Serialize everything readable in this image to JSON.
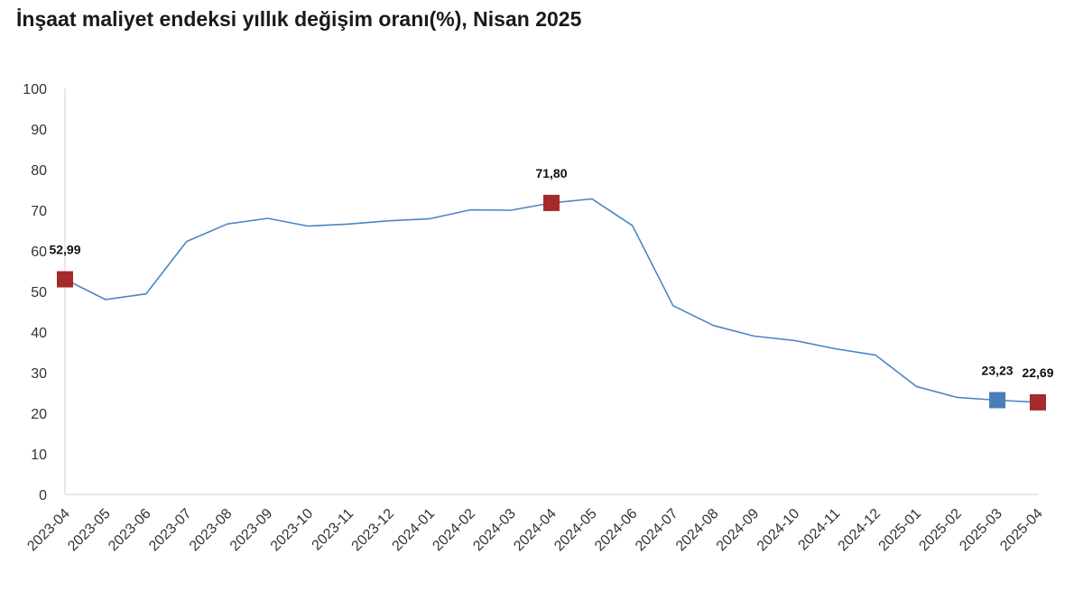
{
  "chart_data": {
    "type": "line",
    "title": "İnşaat maliyet endeksi yıllık değişim oranı(%), Nisan 2025",
    "xlabel": "",
    "ylabel": "",
    "ylim": [
      0,
      100
    ],
    "yticks": [
      "0",
      "10",
      "20",
      "30",
      "40",
      "50",
      "60",
      "70",
      "80",
      "90",
      "100"
    ],
    "categories": [
      "2023-04",
      "2023-05",
      "2023-06",
      "2023-07",
      "2023-08",
      "2023-09",
      "2023-10",
      "2023-11",
      "2023-12",
      "2024-01",
      "2024-02",
      "2024-03",
      "2024-04",
      "2024-05",
      "2024-06",
      "2024-07",
      "2024-08",
      "2024-09",
      "2024-10",
      "2024-11",
      "2024-12",
      "2025-01",
      "2025-02",
      "2025-03",
      "2025-04"
    ],
    "series": [
      {
        "values": [
          52.99,
          48.0,
          49.4,
          62.3,
          66.6,
          68.0,
          66.1,
          66.6,
          67.4,
          67.9,
          70.1,
          70.0,
          71.8,
          72.8,
          66.2,
          46.5,
          41.6,
          39.0,
          37.9,
          35.9,
          34.3,
          26.6,
          23.9,
          23.23,
          22.69
        ],
        "color": "#4a86c5"
      }
    ],
    "highlights": [
      {
        "index": 0,
        "label": "52,99",
        "color": "#a52a2a"
      },
      {
        "index": 12,
        "label": "71,80",
        "color": "#a52a2a"
      },
      {
        "index": 23,
        "label": "23,23",
        "color": "#4a7dba"
      },
      {
        "index": 24,
        "label": "22,69",
        "color": "#a52a2a"
      }
    ],
    "grid": false,
    "legend": "none"
  }
}
